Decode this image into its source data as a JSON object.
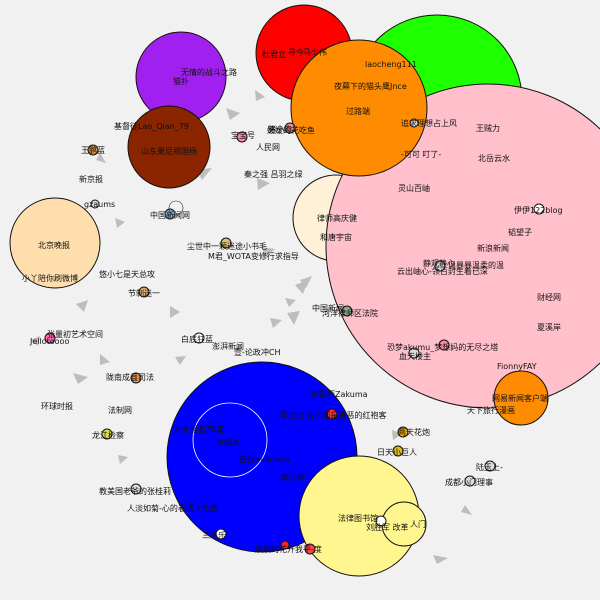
{
  "background": "#f1f1f1",
  "clusters": [
    {
      "id": "c_red",
      "color": "#ff0000",
      "labels": [
        "杜君立",
        "马少伟",
        "寻今"
      ]
    },
    {
      "id": "c_green",
      "color": "#1eff00",
      "labels": [
        "laocheng111"
      ]
    },
    {
      "id": "c_purple",
      "color": "#a020f0",
      "labels": [
        "无情的战斗之路",
        "猫扑"
      ]
    },
    {
      "id": "c_brown",
      "color": "#8b2500",
      "labels": [
        "山东果尼郑国杨"
      ]
    },
    {
      "id": "c_orange",
      "color": "#ff8c00",
      "labels": [
        "夜幕下的猫头鹰Jnce",
        "过路端"
      ]
    },
    {
      "id": "c_pink",
      "color": "#ffc0cb",
      "labels": [
        "追求理想占上风",
        "王贼力",
        "-可可 叮了-",
        "北岳云水",
        "灵山百岫",
        "伊伊122blog",
        "韬望子",
        "新浪新闻",
        "静观静心",
        "温暴暴温柔的温",
        "云出岫心-领百封生着已深",
        "财经网",
        "夏溪岸",
        "恐梦akumu_梦想妈的无尽之塔",
        "血天楼主",
        "FionnyFAY",
        "网易新闻客户端",
        "天下旅行漫画"
      ]
    },
    {
      "id": "c_cream",
      "color": "#fff0d8",
      "labels": [
        "律师高庆健",
        "和唐宇宙"
      ]
    },
    {
      "id": "c_peach",
      "color": "#ffdead",
      "labels": [
        "北京晚报",
        "小丫陪你刷微博"
      ]
    },
    {
      "id": "c_blue",
      "color": "#0000ff",
      "labels": [
        "依旧西Zakuma",
        "学世世 我们都是善恶的红袍客",
        "大无畏石ZK雷",
        "冷钢冰",
        "任我avadway",
        "饭厅网",
        "三乐乐",
        "巴勒斯坦",
        "人淡如菊-心的看透人生真",
        "猫猫精"
      ]
    },
    {
      "id": "c_yellow",
      "color": "#fff68f",
      "labels": [
        "法律图书馆",
        "刘胜军 改革",
        "人门"
      ]
    }
  ],
  "nodes": [
    {
      "label": "猪小肉",
      "color": "#ff8a8a"
    },
    {
      "label": "媛媛的花吃鱼",
      "color": "#eeeeee"
    },
    {
      "label": "基督徒Lao_Qian_79",
      "color": "#cccccc"
    },
    {
      "label": "王鹏蓝",
      "color": "#e8a03c"
    },
    {
      "label": "人民网",
      "color": "#cccccc"
    },
    {
      "label": "秦之强 吕羽之绿",
      "color": "#dddddd"
    },
    {
      "label": "新京报",
      "color": "#cccccc"
    },
    {
      "label": "gzaums",
      "color": "#cccccc"
    },
    {
      "label": "中国新闻网",
      "color": "#7fb3d5"
    },
    {
      "label": "尘世中一颗迷途小书毛",
      "color": "#e0c070"
    },
    {
      "label": "M君_WOTA变修行求指导",
      "color": "#cccccc"
    },
    {
      "label": "悠小七是天总攻",
      "color": "#cccccc"
    },
    {
      "label": "节制迷一",
      "color": "#ddb070"
    },
    {
      "label": "中国新闻",
      "color": "#cccccc"
    },
    {
      "label": "河洋律师区法院",
      "color": "#88aa88"
    },
    {
      "label": "张量初艺术空间",
      "color": "#dddddd"
    },
    {
      "label": "Jellotoooo",
      "color": "#ff66aa"
    },
    {
      "label": "白底狂蓝",
      "color": "#ffffff"
    },
    {
      "label": "澎湃新闻",
      "color": "#cccccc"
    },
    {
      "label": "壹-论政冲CH",
      "color": "#cccccc"
    },
    {
      "label": "陇南成县司法",
      "color": "#e09050"
    },
    {
      "label": "环球时报",
      "color": "#cccccc"
    },
    {
      "label": "法制网",
      "color": "#cccccc"
    },
    {
      "label": "龙江检察",
      "color": "#dddd44"
    },
    {
      "label": "教美国老爷的张桂莉",
      "color": "#cccccc"
    },
    {
      "label": "两天花炮",
      "color": "#ffaa00"
    },
    {
      "label": "日天小巨人",
      "color": "#ddbb22"
    },
    {
      "label": "成都小门理事",
      "color": "#cccccc"
    },
    {
      "label": "陆玉上-",
      "color": "#cccccc"
    },
    {
      "label": "晨晨的花开我平-度",
      "color": "#ff4444"
    },
    {
      "label": "宝宝号",
      "color": "#cccccc"
    }
  ],
  "arrow_color": "#bdbdbd"
}
